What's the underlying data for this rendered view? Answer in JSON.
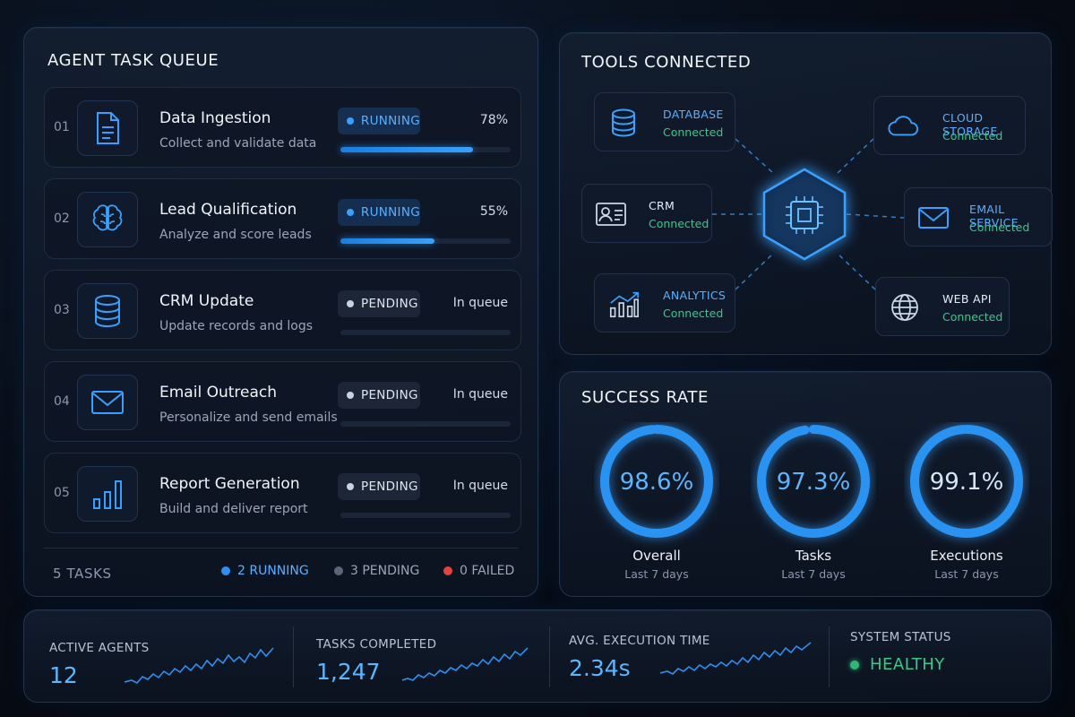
{
  "queue": {
    "title": "AGENT TASK QUEUE",
    "tasks": [
      {
        "num": "01",
        "icon": "document-icon",
        "title": "Data Ingestion",
        "subtitle": "Collect and validate data",
        "status": "RUNNING",
        "value": "78%",
        "progress": 0.78
      },
      {
        "num": "02",
        "icon": "brain-icon",
        "title": "Lead Qualification",
        "subtitle": "Analyze and score leads",
        "status": "RUNNING",
        "value": "55%",
        "progress": 0.55
      },
      {
        "num": "03",
        "icon": "database-icon",
        "title": "CRM Update",
        "subtitle": "Update records and logs",
        "status": "PENDING",
        "value": "In queue",
        "progress": 0
      },
      {
        "num": "04",
        "icon": "mail-icon",
        "title": "Email Outreach",
        "subtitle": "Personalize and send emails",
        "status": "PENDING",
        "value": "In queue",
        "progress": 0
      },
      {
        "num": "05",
        "icon": "bar-chart-icon",
        "title": "Report Generation",
        "subtitle": "Build and deliver report",
        "status": "PENDING",
        "value": "In queue",
        "progress": 0
      }
    ],
    "footer": {
      "total": "5 TASKS",
      "running": "2 RUNNING",
      "pending": "3 PENDING",
      "failed": "0 FAILED"
    }
  },
  "tools": {
    "title": "TOOLS CONNECTED",
    "hub_icon": "cpu-chip-icon",
    "items": [
      {
        "name": "DATABASE",
        "state": "Connected",
        "icon": "database-icon"
      },
      {
        "name": "CLOUD STORAGE",
        "state": "Connected",
        "icon": "cloud-icon"
      },
      {
        "name": "CRM",
        "state": "Connected",
        "icon": "contact-card-icon"
      },
      {
        "name": "EMAIL SERVICE",
        "state": "Connected",
        "icon": "mail-icon"
      },
      {
        "name": "ANALYTICS",
        "state": "Connected",
        "icon": "analytics-chart-icon"
      },
      {
        "name": "WEB API",
        "state": "Connected",
        "icon": "globe-icon"
      }
    ]
  },
  "success": {
    "title": "SUCCESS RATE",
    "gauges": [
      {
        "value": "98.6%",
        "fraction": 0.986,
        "label": "Overall",
        "sub": "Last 7 days"
      },
      {
        "value": "97.3%",
        "fraction": 0.973,
        "label": "Tasks",
        "sub": "Last 7 days"
      },
      {
        "value": "99.1%",
        "fraction": 0.991,
        "label": "Executions",
        "sub": "Last 7 days"
      }
    ]
  },
  "stats": {
    "active_agents": {
      "label": "ACTIVE AGENTS",
      "value": "12"
    },
    "tasks_completed": {
      "label": "TASKS COMPLETED",
      "value": "1,247"
    },
    "avg_time": {
      "label": "AVG. EXECUTION TIME",
      "value": "2.34s"
    },
    "system": {
      "label": "SYSTEM STATUS",
      "value": "HEALTHY"
    }
  },
  "colors": {
    "accent": "#3aa0ff",
    "connected": "#37c88a",
    "failed": "#e0443a",
    "pending": "#6b7585"
  }
}
